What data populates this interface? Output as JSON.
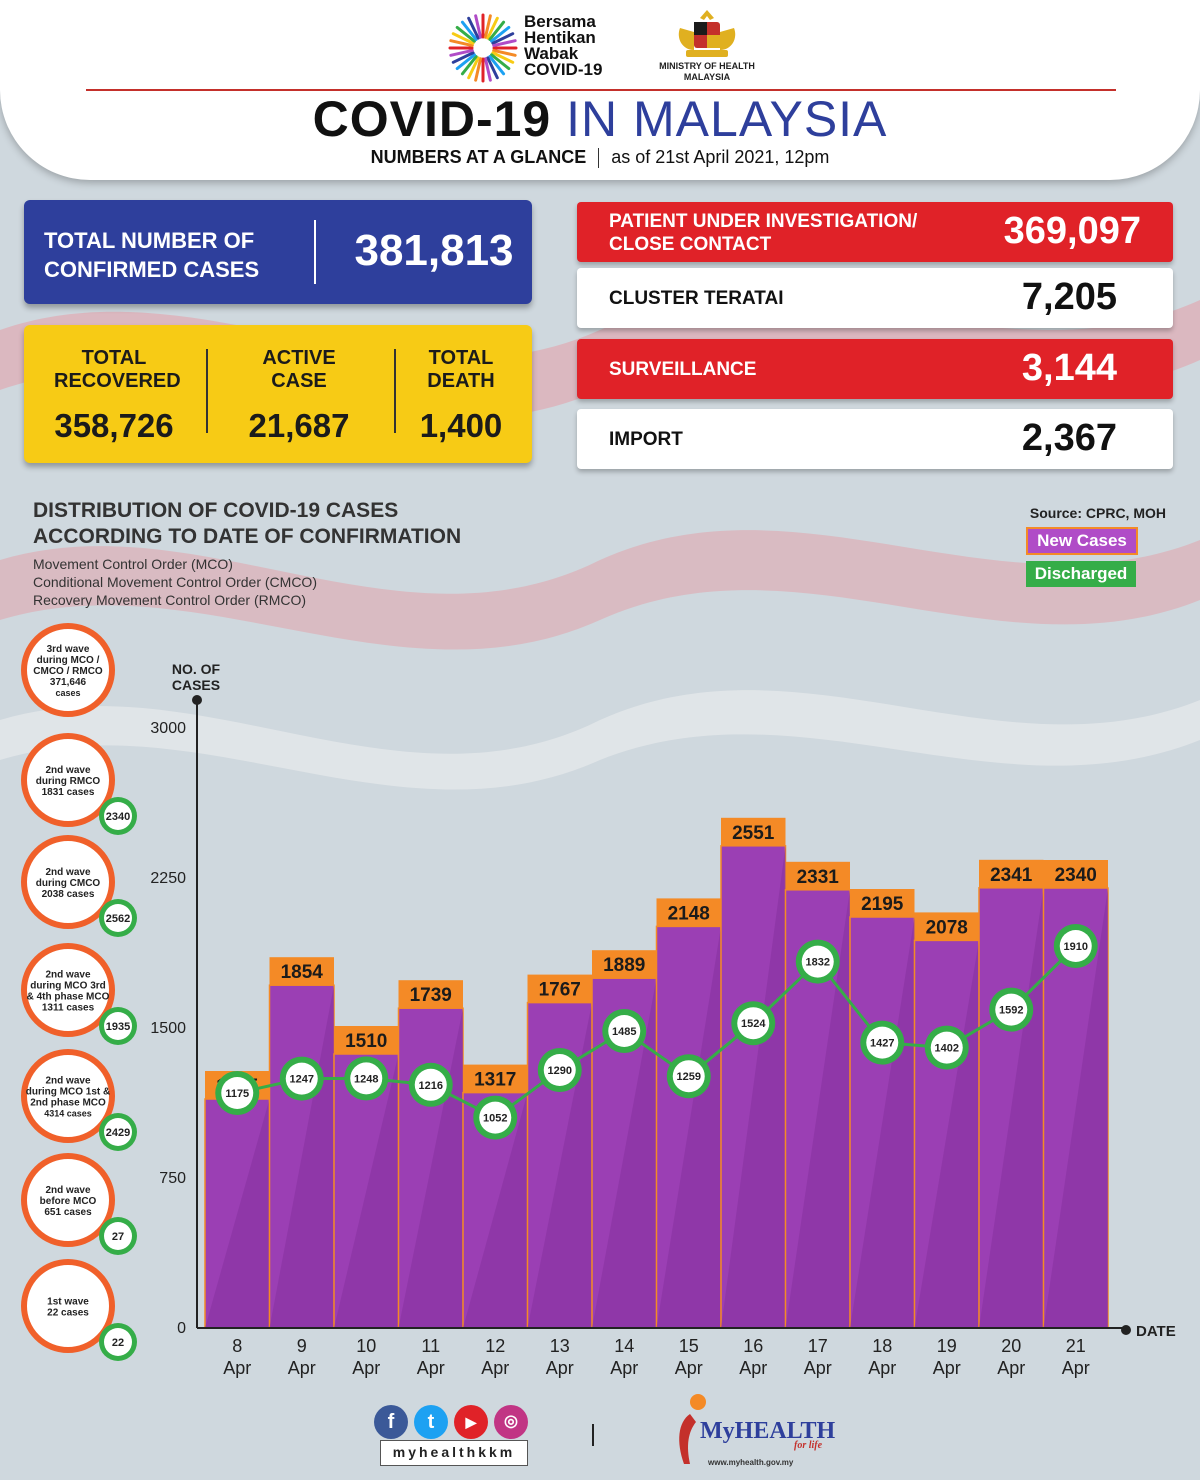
{
  "header": {
    "campaign": [
      "Bersama",
      "Hentikan",
      "Wabak",
      "COVID-19"
    ],
    "ministry": [
      "MINISTRY OF HEALTH",
      "MALAYSIA"
    ],
    "title_part1": "COVID-19",
    "title_part2": "IN MALAYSIA",
    "subtitle_bold": "NUMBERS AT A GLANCE",
    "subtitle_date": "as of 21st April 2021, 12pm"
  },
  "totals": {
    "confirmed_label": "TOTAL NUMBER OF CONFIRMED CASES",
    "confirmed_value": "381,813",
    "recovered_label": "TOTAL RECOVERED",
    "recovered_value": "358,726",
    "active_label": "ACTIVE CASE",
    "active_value": "21,687",
    "death_label": "TOTAL DEATH",
    "death_value": "1,400"
  },
  "categories": [
    {
      "label": "PATIENT UNDER INVESTIGATION/ CLOSE CONTACT",
      "value": "369,097",
      "style": "red"
    },
    {
      "label": "CLUSTER TERATAI",
      "value": "7,205",
      "style": "white"
    },
    {
      "label": "SURVEILLANCE",
      "value": "3,144",
      "style": "red"
    },
    {
      "label": "IMPORT",
      "value": "2,367",
      "style": "white"
    }
  ],
  "chart_section": {
    "title_line1": "DISTRIBUTION OF COVID-19 CASES",
    "title_line2": "ACCORDING TO DATE OF CONFIRMATION",
    "notes": [
      "Movement Control Order (MCO)",
      "Conditional Movement Control Order (CMCO)",
      "Recovery Movement Control Order (RMCO)"
    ],
    "source": "Source: CPRC, MOH",
    "legend_new": "New Cases",
    "legend_discharged": "Discharged"
  },
  "waves": [
    {
      "lines": [
        "3rd wave",
        "during MCO /",
        "CMCO / RMCO",
        "371,646",
        "cases"
      ],
      "badge": ""
    },
    {
      "lines": [
        "2nd wave",
        "during RMCO",
        "1831 cases"
      ],
      "badge": "2340"
    },
    {
      "lines": [
        "2nd wave",
        "during CMCO",
        "2038 cases"
      ],
      "badge": "2562"
    },
    {
      "lines": [
        "2nd wave",
        "during MCO 3rd",
        "& 4th phase MCO",
        "1311 cases"
      ],
      "badge": "1935"
    },
    {
      "lines": [
        "2nd wave",
        "during MCO 1st &",
        "2nd phase MCO",
        "4314 cases"
      ],
      "badge": "2429"
    },
    {
      "lines": [
        "2nd wave",
        "before MCO",
        "651 cases"
      ],
      "badge": "27"
    },
    {
      "lines": [
        "1st wave",
        "22 cases"
      ],
      "badge": "22"
    }
  ],
  "chart_data": {
    "type": "bar",
    "ylabel": "NO. OF CASES",
    "xlabel": "DATE",
    "ylim": [
      0,
      3000
    ],
    "yticks": [
      0,
      750,
      1500,
      2250,
      3000
    ],
    "categories": [
      "8 Apr",
      "9 Apr",
      "10 Apr",
      "11 Apr",
      "12 Apr",
      "13 Apr",
      "14 Apr",
      "15 Apr",
      "16 Apr",
      "17 Apr",
      "18 Apr",
      "19 Apr",
      "20 Apr",
      "21 Apr"
    ],
    "series": [
      {
        "name": "New Cases",
        "type": "bar",
        "color": "#b04cc7",
        "values": [
          1285,
          1854,
          1510,
          1739,
          1317,
          1767,
          1889,
          2148,
          2551,
          2331,
          2195,
          2078,
          2341,
          2340
        ]
      },
      {
        "name": "Discharged",
        "type": "line",
        "color": "#35ad48",
        "values": [
          1175,
          1247,
          1248,
          1216,
          1052,
          1290,
          1485,
          1259,
          1524,
          1832,
          1427,
          1402,
          1592,
          1910
        ]
      }
    ],
    "grid": false
  },
  "footer": {
    "handle": "myhealthkkm",
    "brand": "MyHEALTH",
    "brand_tag": "for life",
    "url": "www.myhealth.gov.my"
  },
  "colors": {
    "blue": "#2e3f9c",
    "red": "#e02228",
    "yellow": "#f7cb15",
    "purple": "#b04cc7",
    "orange": "#f48a26",
    "green": "#35ad48"
  }
}
